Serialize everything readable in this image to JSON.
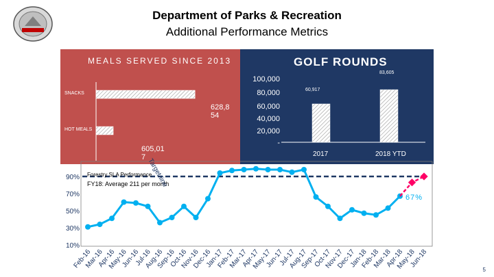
{
  "header": {
    "title": "Department of Parks & Recreation",
    "subtitle": "Additional Performance Metrics"
  },
  "colors": {
    "meals_bg": "#c0504d",
    "golf_bg": "#1f3864",
    "line": "#00b0f0",
    "target": "#1f3864",
    "projection": "#ff0066"
  },
  "page_number": "5",
  "chart_data": [
    {
      "type": "bar",
      "title": "MEALS SERVED SINCE 2013",
      "categories": [
        "SNACKS",
        "HOT MEALS"
      ],
      "values": [
        628854,
        605017
      ],
      "value_labels": [
        "628,8\n54",
        "605,01\n7"
      ]
    },
    {
      "type": "bar",
      "title": "GOLF ROUNDS",
      "categories": [
        "2017",
        "2018 YTD"
      ],
      "values": [
        60917,
        83605
      ],
      "value_labels": [
        "60,917",
        "83,605"
      ],
      "yticks": [
        "100,000",
        "80,000",
        "60,000",
        "40,000",
        "20,000",
        "-"
      ],
      "ylim": [
        0,
        100000
      ]
    },
    {
      "type": "line",
      "title": "Forestry SLA Performance",
      "target_label": "Target line",
      "annotation": "FY18: Average 211 per month",
      "end_label": "67%",
      "yticks": [
        "90%",
        "70%",
        "50%",
        "30%",
        "10%"
      ],
      "ylim": [
        10,
        100
      ],
      "categories": [
        "Feb-16",
        "Mar-16",
        "Apr-16",
        "May-16",
        "Jun-16",
        "Jul-16",
        "Aug-16",
        "Sep-16",
        "Oct-16",
        "Nov-16",
        "Dec-16",
        "Jan-17",
        "Feb-17",
        "Mar-17",
        "Apr-17",
        "May-17",
        "Jun-17",
        "Jul-17",
        "Aug-17",
        "Sep-17",
        "Oct-17",
        "Nov-17",
        "Dec-17",
        "Jan-18",
        "Feb-18",
        "Mar-18",
        "Apr-18",
        "May-18",
        "Jun-18"
      ],
      "values": [
        31,
        34,
        41,
        60,
        59,
        55,
        36,
        42,
        55,
        42,
        64,
        94,
        97,
        98,
        99,
        98,
        98,
        95,
        98,
        66,
        55,
        41,
        51,
        47,
        45,
        53,
        67,
        null,
        null
      ],
      "projection": [
        null,
        null,
        null,
        null,
        null,
        null,
        null,
        null,
        null,
        null,
        null,
        null,
        null,
        null,
        null,
        null,
        null,
        null,
        null,
        null,
        null,
        null,
        null,
        null,
        null,
        null,
        67,
        83,
        90
      ],
      "target": 90
    }
  ]
}
